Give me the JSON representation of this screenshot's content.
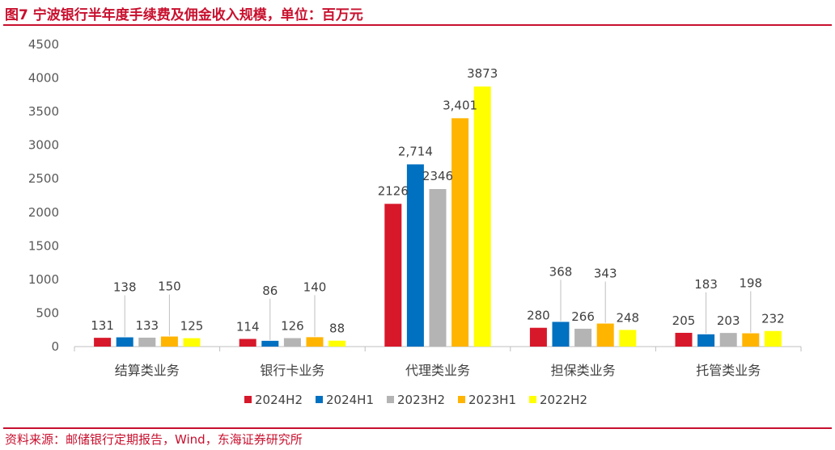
{
  "header": {
    "title": "图7  宁波银行半年度手续费及佣金收入规模，单位：百万元"
  },
  "footer": {
    "source": "资料来源：邮储银行定期报告，Wind，东海证券研究所"
  },
  "chart_data": {
    "type": "bar",
    "title": "图7  宁波银行半年度手续费及佣金收入规模，单位：百万元",
    "xlabel": "",
    "ylabel": "",
    "ylim": [
      0,
      4500
    ],
    "yticks": [
      0,
      500,
      1000,
      1500,
      2000,
      2500,
      3000,
      3500,
      4000,
      4500
    ],
    "categories": [
      "结算类业务",
      "银行卡业务",
      "代理类业务",
      "担保类业务",
      "托管类业务"
    ],
    "series": [
      {
        "name": "2024H2",
        "color": "#d7182a",
        "values": [
          131,
          114,
          2126,
          280,
          205
        ],
        "labels": [
          "131",
          "114",
          "2126",
          "280",
          "205"
        ]
      },
      {
        "name": "2024H1",
        "color": "#0070c0",
        "values": [
          138,
          86,
          2714,
          368,
          183
        ],
        "labels": [
          "138",
          "86",
          "2,714",
          "368",
          "183"
        ]
      },
      {
        "name": "2023H2",
        "color": "#b4b4b4",
        "values": [
          133,
          126,
          2346,
          266,
          203
        ],
        "labels": [
          "133",
          "126",
          "2346",
          "266",
          "203"
        ]
      },
      {
        "name": "2023H1",
        "color": "#ffb400",
        "values": [
          150,
          140,
          3401,
          343,
          198
        ],
        "labels": [
          "150",
          "140",
          "3,401",
          "343",
          "198"
        ]
      },
      {
        "name": "2022H2",
        "color": "#ffff00",
        "values": [
          125,
          88,
          3873,
          248,
          232
        ],
        "labels": [
          "125",
          "88",
          "3873",
          "248",
          "232"
        ]
      }
    ],
    "grid": false,
    "legend": "bottom"
  }
}
